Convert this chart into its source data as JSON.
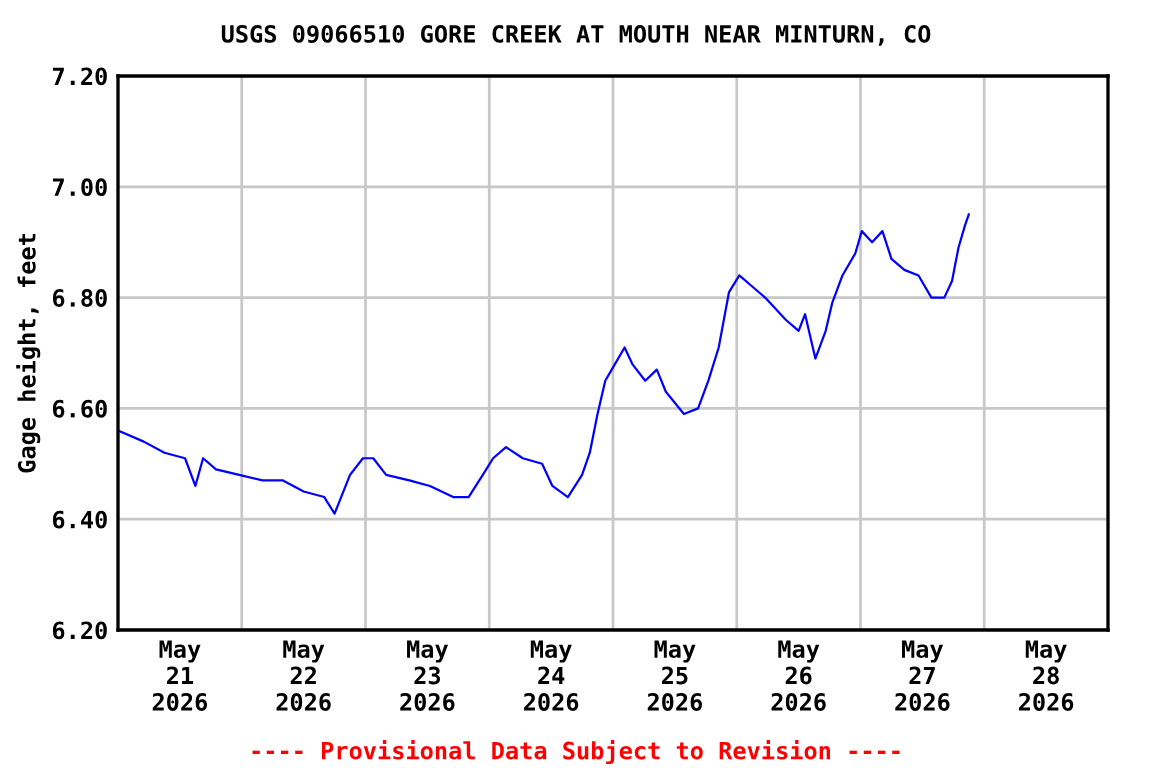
{
  "chart_data": {
    "type": "line",
    "title": "USGS 09066510 GORE CREEK AT MOUTH NEAR MINTURN, CO",
    "ylabel": "Gage height, feet",
    "annotations": [
      "---- Provisional Data Subject to Revision ----"
    ],
    "x": [
      "2026-05-21T00:00",
      "2026-05-21T05:00",
      "2026-05-21T09:00",
      "2026-05-21T13:00",
      "2026-05-21T15:00",
      "2026-05-21T16:30",
      "2026-05-21T19:00",
      "2026-05-21T23:30",
      "2026-05-22T04:00",
      "2026-05-22T08:00",
      "2026-05-22T12:00",
      "2026-05-22T16:00",
      "2026-05-22T18:00",
      "2026-05-22T21:00",
      "2026-05-22T23:30",
      "2026-05-23T01:30",
      "2026-05-23T04:00",
      "2026-05-23T08:30",
      "2026-05-23T12:30",
      "2026-05-23T17:00",
      "2026-05-23T20:00",
      "2026-05-23T22:45",
      "2026-05-24T00:45",
      "2026-05-24T03:15",
      "2026-05-24T06:30",
      "2026-05-24T10:15",
      "2026-05-24T12:15",
      "2026-05-24T15:15",
      "2026-05-24T18:00",
      "2026-05-24T19:30",
      "2026-05-24T21:00",
      "2026-05-24T22:30",
      "2026-05-24T23:45",
      "2026-05-25T02:15",
      "2026-05-25T03:45",
      "2026-05-25T06:15",
      "2026-05-25T08:30",
      "2026-05-25T10:15",
      "2026-05-25T13:45",
      "2026-05-25T16:30",
      "2026-05-25T18:30",
      "2026-05-25T20:30",
      "2026-05-25T22:30",
      "2026-05-26T00:30",
      "2026-05-26T03:00",
      "2026-05-26T05:30",
      "2026-05-26T09:30",
      "2026-05-26T12:00",
      "2026-05-26T13:15",
      "2026-05-26T15:15",
      "2026-05-26T17:15",
      "2026-05-26T18:30",
      "2026-05-26T20:30",
      "2026-05-26T23:00",
      "2026-05-27T00:15",
      "2026-05-27T02:15",
      "2026-05-27T04:15",
      "2026-05-27T06:00",
      "2026-05-27T08:30",
      "2026-05-27T11:15",
      "2026-05-27T13:45",
      "2026-05-27T16:15",
      "2026-05-27T17:45",
      "2026-05-27T19:00",
      "2026-05-27T20:15",
      "2026-05-27T21:00"
    ],
    "series": [
      {
        "color": "#0000ff",
        "values": [
          6.56,
          6.54,
          6.52,
          6.51,
          6.46,
          6.51,
          6.49,
          6.48,
          6.47,
          6.47,
          6.45,
          6.44,
          6.41,
          6.48,
          6.51,
          6.51,
          6.48,
          6.47,
          6.46,
          6.44,
          6.44,
          6.48,
          6.51,
          6.53,
          6.51,
          6.5,
          6.46,
          6.44,
          6.48,
          6.52,
          6.59,
          6.65,
          6.67,
          6.71,
          6.68,
          6.65,
          6.67,
          6.63,
          6.59,
          6.6,
          6.65,
          6.71,
          6.81,
          6.84,
          6.82,
          6.8,
          6.76,
          6.74,
          6.77,
          6.69,
          6.74,
          6.79,
          6.84,
          6.88,
          6.92,
          6.9,
          6.92,
          6.87,
          6.85,
          6.84,
          6.8,
          6.8,
          6.83,
          6.89,
          6.93,
          6.95
        ]
      }
    ],
    "xlim": [
      "2026-05-21T00:00",
      "2026-05-29T00:00"
    ],
    "xticks": [
      {
        "value": "2026-05-21T12:00",
        "label": "May\n21\n2026"
      },
      {
        "value": "2026-05-22T12:00",
        "label": "May\n22\n2026"
      },
      {
        "value": "2026-05-23T12:00",
        "label": "May\n23\n2026"
      },
      {
        "value": "2026-05-24T12:00",
        "label": "May\n24\n2026"
      },
      {
        "value": "2026-05-25T12:00",
        "label": "May\n25\n2026"
      },
      {
        "value": "2026-05-26T12:00",
        "label": "May\n26\n2026"
      },
      {
        "value": "2026-05-27T12:00",
        "label": "May\n27\n2026"
      },
      {
        "value": "2026-05-28T12:00",
        "label": "May\n28\n2026"
      },
      {
        "value": "2026-05-22T00:00",
        "label": null
      },
      {
        "value": "2026-05-23T00:00",
        "label": null
      },
      {
        "value": "2026-05-24T00:00",
        "label": null
      },
      {
        "value": "2026-05-25T00:00",
        "label": null
      },
      {
        "value": "2026-05-26T00:00",
        "label": null
      },
      {
        "value": "2026-05-27T00:00",
        "label": null
      },
      {
        "value": "2026-05-28T00:00",
        "label": null
      }
    ],
    "ylim": [
      6.2,
      7.2
    ],
    "yticks": [
      {
        "value": 6.2,
        "label": "6.20"
      },
      {
        "value": 6.4,
        "label": "6.40"
      },
      {
        "value": 6.6,
        "label": "6.60"
      },
      {
        "value": 6.8,
        "label": "6.80"
      },
      {
        "value": 7.0,
        "label": "7.00"
      },
      {
        "value": 7.2,
        "label": "7.20"
      }
    ],
    "grid": true,
    "legend": false
  }
}
